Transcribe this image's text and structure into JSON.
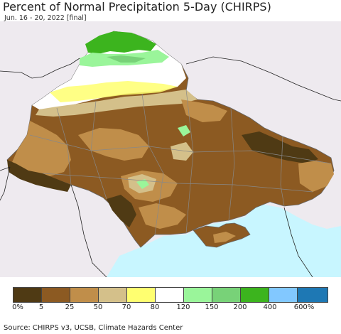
{
  "title": "Percent of Normal Precipitation 5-Day (CHIRPS)",
  "subtitle": "Jun. 16 - 20, 2022 [final]",
  "source": "Source: CHIRPS v3, UCSB, Climate Hazards Center",
  "legend": {
    "colors": [
      "#4f3a14",
      "#8c5a22",
      "#c08e4a",
      "#d4c08a",
      "#ffff70",
      "#ffffff",
      "#9af59a",
      "#78d278",
      "#3cb41e",
      "#82c8ff",
      "#1e78b4"
    ],
    "labels": [
      "0%",
      "5",
      "25",
      "50",
      "70",
      "80",
      "120",
      "150",
      "200",
      "400",
      "600%"
    ]
  },
  "map_colors": {
    "background": "#eeeaef",
    "sea": "#c8f6ff",
    "dominant": "#8c5a22",
    "border": "#888888"
  }
}
